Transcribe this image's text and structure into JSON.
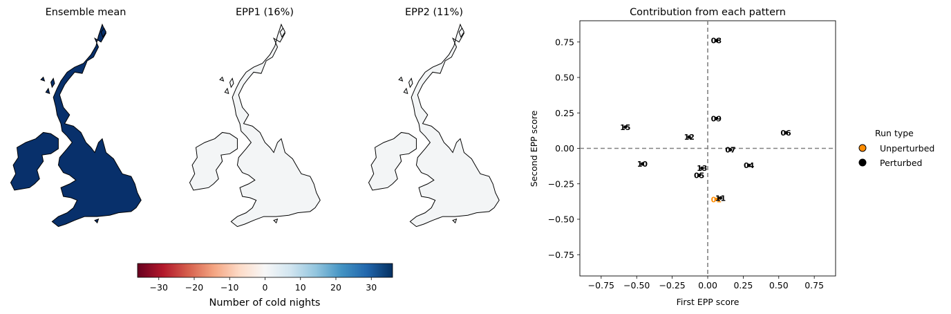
{
  "maps": {
    "panels": [
      {
        "title": "Ensemble mean",
        "fill": "#08306b",
        "fill_level": 36
      },
      {
        "title": "EPP1 (16%)",
        "fill": "#f3f5f6",
        "fill_level": 0
      },
      {
        "title": "EPP2 (11%)",
        "fill": "#f3f5f6",
        "fill_level": 0
      }
    ],
    "colorbar": {
      "label": "Number of cold nights",
      "range": [
        -36,
        36
      ],
      "ticks": [
        "−30",
        "−20",
        "−10",
        "0",
        "10",
        "20",
        "30"
      ],
      "tick_values": [
        -30,
        -20,
        -10,
        0,
        10,
        20,
        30
      ],
      "colormap": "RdBu",
      "stops": [
        "#67001f",
        "#b2182b",
        "#d6604d",
        "#f4a582",
        "#fddbc7",
        "#f7f7f7",
        "#d1e5f0",
        "#92c5de",
        "#4393c3",
        "#2166ac",
        "#053061"
      ]
    }
  },
  "chart_data": {
    "type": "scatter",
    "title": "Contribution from each pattern",
    "xlabel": "First EPP score",
    "ylabel": "Second EPP score",
    "xlim": [
      -0.9,
      0.9
    ],
    "ylim": [
      -0.9,
      0.9
    ],
    "xticks": [
      "−0.75",
      "−0.50",
      "−0.25",
      "0.00",
      "0.25",
      "0.50",
      "0.75"
    ],
    "xtick_values": [
      -0.75,
      -0.5,
      -0.25,
      0,
      0.25,
      0.5,
      0.75
    ],
    "yticks": [
      "−0.75",
      "−0.50",
      "−0.25",
      "0.00",
      "0.25",
      "0.50",
      "0.75"
    ],
    "ytick_values": [
      -0.75,
      -0.5,
      -0.25,
      0,
      0.25,
      0.5,
      0.75
    ],
    "grid": false,
    "reference_lines": [
      {
        "axis": "x",
        "value": 0,
        "style": "dashed",
        "color": "#808080"
      },
      {
        "axis": "y",
        "value": 0,
        "style": "dashed",
        "color": "#808080"
      }
    ],
    "legend": {
      "title": "Run type",
      "placement": "right",
      "entries": [
        {
          "label": "Unperturbed",
          "color": "#ff8c00"
        },
        {
          "label": "Perturbed",
          "color": "#000000"
        }
      ]
    },
    "points": [
      {
        "label": "01",
        "x": 0.06,
        "y": -0.36,
        "type": "Unperturbed"
      },
      {
        "label": "04",
        "x": 0.29,
        "y": -0.12,
        "type": "Perturbed"
      },
      {
        "label": "05",
        "x": -0.06,
        "y": -0.19,
        "type": "Perturbed"
      },
      {
        "label": "06",
        "x": 0.55,
        "y": 0.11,
        "type": "Perturbed"
      },
      {
        "label": "07",
        "x": 0.16,
        "y": -0.01,
        "type": "Perturbed"
      },
      {
        "label": "08",
        "x": 0.06,
        "y": 0.76,
        "type": "Perturbed"
      },
      {
        "label": "09",
        "x": 0.06,
        "y": 0.21,
        "type": "Perturbed"
      },
      {
        "label": "10",
        "x": -0.46,
        "y": -0.11,
        "type": "Perturbed"
      },
      {
        "label": "11",
        "x": 0.09,
        "y": -0.35,
        "type": "Perturbed"
      },
      {
        "label": "12",
        "x": -0.13,
        "y": 0.08,
        "type": "Perturbed"
      },
      {
        "label": "13",
        "x": -0.04,
        "y": -0.14,
        "type": "Perturbed"
      },
      {
        "label": "15",
        "x": -0.58,
        "y": 0.15,
        "type": "Perturbed"
      }
    ]
  }
}
